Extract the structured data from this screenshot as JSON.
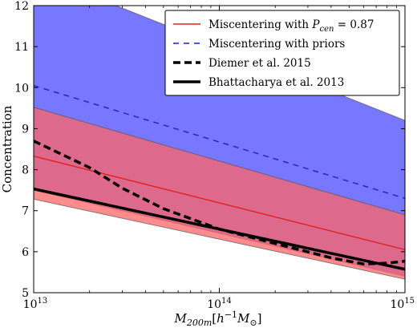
{
  "chart_data": {
    "type": "line",
    "xlabel": "M_{200m}[h^{-1}M_⊙]",
    "ylabel": "Concentration",
    "xscale": "log",
    "xlim": [
      10000000000000.0,
      1000000000000000.0
    ],
    "ylim": [
      5,
      12
    ],
    "x_ticks": [
      {
        "value": 10000000000000.0,
        "base": "10",
        "exp": "13"
      },
      {
        "value": 100000000000000.0,
        "base": "10",
        "exp": "14"
      },
      {
        "value": 1000000000000000.0,
        "base": "10",
        "exp": "15"
      }
    ],
    "y_ticks": [
      "5",
      "6",
      "7",
      "8",
      "9",
      "10",
      "11",
      "12"
    ],
    "legend_position": "top-right",
    "bands": [
      {
        "series": "Miscentering with priors",
        "color": "#7070ff",
        "opacity": 0.95,
        "x": [
          10000000000000.0,
          1000000000000000.0
        ],
        "lower": [
          7.5,
          5.4
        ],
        "upper": [
          12.8,
          9.2
        ]
      },
      {
        "series": "Miscentering with P_cen = 0.87",
        "color": "#ff6666",
        "opacity": 0.75,
        "x": [
          10000000000000.0,
          1000000000000000.0
        ],
        "lower": [
          7.28,
          5.33
        ],
        "upper": [
          9.52,
          6.9
        ]
      }
    ],
    "series": [
      {
        "name": "Miscentering with P_cen = 0.87",
        "color": "#e0201e",
        "dash": "solid",
        "width": 1.4,
        "x": [
          10000000000000.0,
          1000000000000000.0
        ],
        "y": [
          8.33,
          6.05
        ]
      },
      {
        "name": "Miscentering with priors",
        "color": "#1f1fd0",
        "dash": "dashed",
        "width": 1.4,
        "x": [
          10000000000000.0,
          1000000000000000.0
        ],
        "y": [
          10.05,
          7.3
        ]
      },
      {
        "name": "Diemer et al. 2015",
        "color": "#000000",
        "dash": "dashed",
        "width": 3.5,
        "x": [
          10000000000000.0,
          15000000000000.0,
          20000000000000.0,
          30000000000000.0,
          50000000000000.0,
          100000000000000.0,
          200000000000000.0,
          400000000000000.0,
          600000000000000.0,
          800000000000000.0,
          1000000000000000.0
        ],
        "y": [
          8.7,
          8.32,
          8.05,
          7.55,
          7.05,
          6.55,
          6.2,
          5.85,
          5.7,
          5.72,
          5.77
        ]
      },
      {
        "name": "Bhattacharya et al. 2013",
        "color": "#000000",
        "dash": "solid",
        "width": 3.5,
        "x": [
          10000000000000.0,
          1000000000000000.0
        ],
        "y": [
          7.53,
          5.57
        ]
      }
    ],
    "legend": [
      {
        "label_prefix": "Miscentering with ",
        "label_math": "P",
        "label_sub": "cen",
        "label_suffix": " = 0.87",
        "series": 0
      },
      {
        "label_prefix": "Miscentering with priors",
        "label_math": "",
        "label_sub": "",
        "label_suffix": "",
        "series": 1
      },
      {
        "label_prefix": "Diemer et al. 2015",
        "label_math": "",
        "label_sub": "",
        "label_suffix": "",
        "series": 2
      },
      {
        "label_prefix": "Bhattacharya et al. 2013",
        "label_math": "",
        "label_sub": "",
        "label_suffix": "",
        "series": 3
      }
    ]
  }
}
